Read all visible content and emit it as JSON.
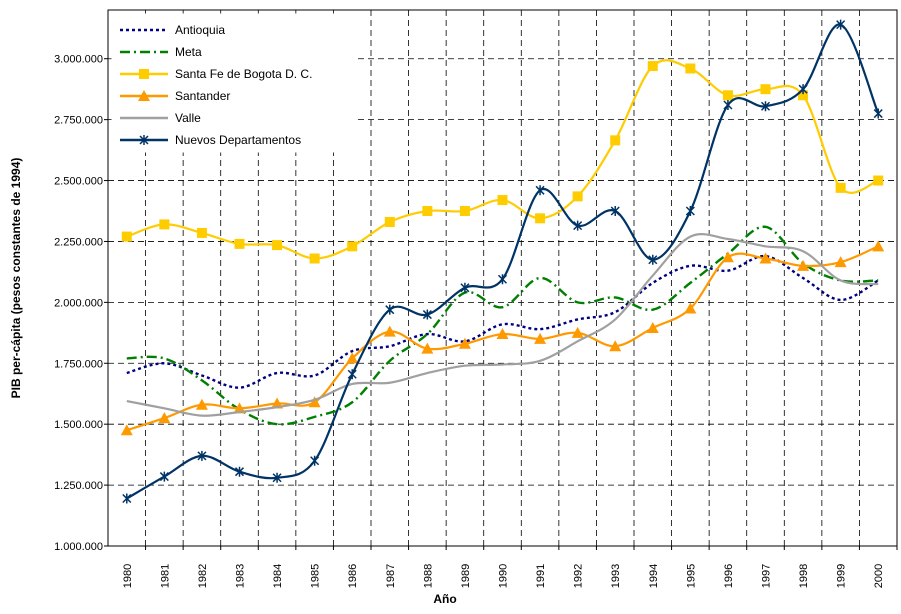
{
  "chart_data": {
    "type": "line",
    "x_label": "Año",
    "y_label": "PIB per-cápita (pesos constantes de 1994)",
    "categories": [
      "1980",
      "1981",
      "1982",
      "1983",
      "1984",
      "1985",
      "1986",
      "1987",
      "1988",
      "1989",
      "1990",
      "1991",
      "1992",
      "1993",
      "1994",
      "1995",
      "1996",
      "1997",
      "1998",
      "1999",
      "2000"
    ],
    "ylim": [
      1000000,
      3200000
    ],
    "yticks": [
      {
        "value": 1000000,
        "label": "1.000.000"
      },
      {
        "value": 1250000,
        "label": "1.250.000"
      },
      {
        "value": 1500000,
        "label": "1.500.000"
      },
      {
        "value": 1750000,
        "label": "1.750.000"
      },
      {
        "value": 2000000,
        "label": "2.000.000"
      },
      {
        "value": 2250000,
        "label": "2.250.000"
      },
      {
        "value": 2500000,
        "label": "2.500.000"
      },
      {
        "value": 2750000,
        "label": "2.750.000"
      },
      {
        "value": 3000000,
        "label": "3.000.000"
      }
    ],
    "grid": true,
    "smooth": true,
    "legend": "top-left",
    "series": [
      {
        "name": "Antioquia",
        "color": "#000080",
        "dash": "dotted",
        "marker": "none",
        "values": [
          1710000,
          1750000,
          1700000,
          1650000,
          1710000,
          1700000,
          1800000,
          1820000,
          1870000,
          1840000,
          1910000,
          1890000,
          1930000,
          1960000,
          2080000,
          2150000,
          2130000,
          2190000,
          2100000,
          2010000,
          2090000
        ]
      },
      {
        "name": "Meta",
        "color": "#008000",
        "dash": "dashdot",
        "marker": "none",
        "values": [
          1770000,
          1770000,
          1680000,
          1560000,
          1500000,
          1530000,
          1590000,
          1760000,
          1870000,
          2040000,
          1980000,
          2100000,
          2000000,
          2020000,
          1970000,
          2080000,
          2200000,
          2310000,
          2160000,
          2090000,
          2090000
        ]
      },
      {
        "name": "Santa Fe de Bogota D. C.",
        "color": "#FFCC00",
        "dash": "solid",
        "marker": "square",
        "values": [
          2270000,
          2320000,
          2285000,
          2240000,
          2235000,
          2180000,
          2230000,
          2330000,
          2375000,
          2375000,
          2420000,
          2345000,
          2435000,
          2665000,
          2970000,
          2960000,
          2850000,
          2875000,
          2850000,
          2470000,
          2500000
        ]
      },
      {
        "name": "Santander",
        "color": "#FF9900",
        "dash": "solid",
        "marker": "triangle",
        "values": [
          1475000,
          1525000,
          1580000,
          1565000,
          1585000,
          1590000,
          1770000,
          1880000,
          1810000,
          1830000,
          1870000,
          1850000,
          1875000,
          1820000,
          1895000,
          1975000,
          2185000,
          2180000,
          2150000,
          2165000,
          2230000
        ]
      },
      {
        "name": "Valle",
        "color": "#A0A0A0",
        "dash": "solid",
        "marker": "none",
        "values": [
          1595000,
          1565000,
          1535000,
          1550000,
          1570000,
          1600000,
          1665000,
          1670000,
          1710000,
          1740000,
          1745000,
          1760000,
          1840000,
          1930000,
          2110000,
          2270000,
          2260000,
          2230000,
          2210000,
          2090000,
          2075000
        ]
      },
      {
        "name": "Nuevos Departamentos",
        "color": "#003366",
        "dash": "solid",
        "marker": "star",
        "values": [
          1195000,
          1285000,
          1370000,
          1305000,
          1280000,
          1350000,
          1705000,
          1970000,
          1950000,
          2060000,
          2095000,
          2460000,
          2315000,
          2375000,
          2175000,
          2375000,
          2810000,
          2805000,
          2875000,
          3140000,
          2775000
        ]
      }
    ]
  }
}
